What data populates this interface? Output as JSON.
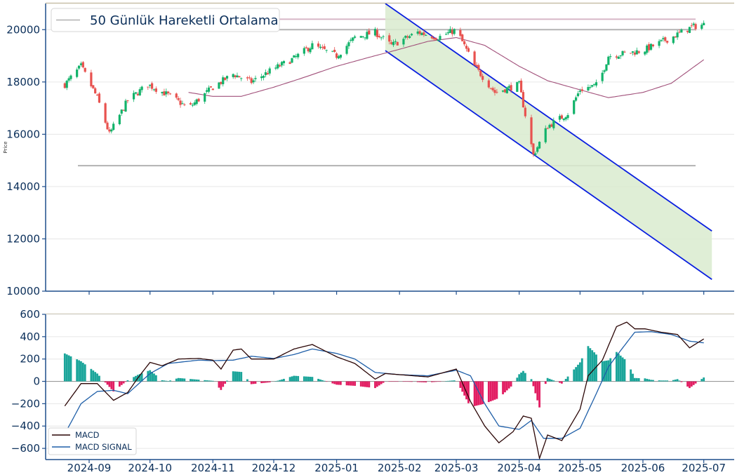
{
  "colors": {
    "axis": "#1f4e8c",
    "tick_text": "#0b2f5a",
    "grid": "#e6e6e6",
    "up_candle": "#12b36a",
    "down_candle": "#e8524f",
    "ma_line": "#a1507a",
    "level_line": "#b3b3b3",
    "top_border": "#c8c0a8",
    "channel_fill": "#d9ebcf",
    "channel_line": "#0a1fe0",
    "macd_line": "#2a0505",
    "signal_line": "#1f5fa8",
    "hist_pos": "#1aa59a",
    "hist_neg": "#e21d62"
  },
  "chart_data": [
    {
      "type": "candlestick",
      "ylabel": "Price",
      "ylim": [
        10000,
        21000
      ],
      "yticks": [
        "10000",
        "12000",
        "14000",
        "16000",
        "18000",
        "20000"
      ],
      "legend": {
        "placement": "top-left",
        "entries": [
          "50 Günlük Hareketli Ortalama"
        ]
      },
      "grid": true,
      "horizontal_levels": [
        20400,
        20000,
        14800
      ],
      "regression_channel": {
        "start_date": "2025-01-25",
        "end_date": "2025-07-05",
        "upper": [
          21000,
          12300
        ],
        "lower": [
          19200,
          10450
        ]
      },
      "ma50_key_points": [
        [
          "2024-10-20",
          17600
        ],
        [
          "2024-11-01",
          17450
        ],
        [
          "2024-11-15",
          17450
        ],
        [
          "2024-12-01",
          17800
        ],
        [
          "2024-12-15",
          18150
        ],
        [
          "2025-01-01",
          18600
        ],
        [
          "2025-01-15",
          18900
        ],
        [
          "2025-02-01",
          19250
        ],
        [
          "2025-02-15",
          19550
        ],
        [
          "2025-03-01",
          19700
        ],
        [
          "2025-03-15",
          19400
        ],
        [
          "2025-04-01",
          18600
        ],
        [
          "2025-04-15",
          18050
        ],
        [
          "2025-05-01",
          17700
        ],
        [
          "2025-05-15",
          17400
        ],
        [
          "2025-06-01",
          17600
        ],
        [
          "2025-06-15",
          17950
        ],
        [
          "2025-07-01",
          18850
        ]
      ],
      "close_key_points": [
        [
          "2024-08-20",
          17900
        ],
        [
          "2024-08-28",
          18600
        ],
        [
          "2024-09-05",
          17400
        ],
        [
          "2024-09-11",
          16000
        ],
        [
          "2024-09-20",
          17300
        ],
        [
          "2024-09-30",
          17900
        ],
        [
          "2024-10-10",
          17500
        ],
        [
          "2024-10-20",
          17000
        ],
        [
          "2024-11-01",
          17800
        ],
        [
          "2024-11-11",
          18300
        ],
        [
          "2024-11-20",
          18000
        ],
        [
          "2024-12-01",
          18500
        ],
        [
          "2024-12-11",
          18900
        ],
        [
          "2024-12-20",
          19400
        ],
        [
          "2025-01-01",
          19000
        ],
        [
          "2025-01-10",
          19700
        ],
        [
          "2025-01-20",
          19900
        ],
        [
          "2025-01-28",
          19400
        ],
        [
          "2025-02-10",
          19900
        ],
        [
          "2025-02-20",
          19700
        ],
        [
          "2025-03-01",
          20000
        ],
        [
          "2025-03-10",
          18600
        ],
        [
          "2025-03-20",
          17600
        ],
        [
          "2025-04-01",
          17900
        ],
        [
          "2025-04-08",
          15200
        ],
        [
          "2025-04-15",
          16300
        ],
        [
          "2025-04-25",
          16800
        ],
        [
          "2025-05-01",
          17700
        ],
        [
          "2025-05-10",
          17900
        ],
        [
          "2025-05-15",
          19000
        ],
        [
          "2025-06-01",
          19200
        ],
        [
          "2025-06-15",
          19700
        ],
        [
          "2025-06-25",
          20100
        ],
        [
          "2025-07-01",
          20200
        ]
      ]
    },
    {
      "type": "line",
      "ylim": [
        -700,
        600
      ],
      "yticks": [
        "600",
        "400",
        "200",
        "0",
        "−200",
        "−400",
        "−600"
      ],
      "x_tick_labels": [
        "2024-09",
        "2024-10",
        "2024-11",
        "2024-12",
        "2025-01",
        "2025-02",
        "2025-03",
        "2025-04",
        "2025-05",
        "2025-06",
        "2025-07"
      ],
      "x_tick_dates": [
        "2024-09-01",
        "2024-10-01",
        "2024-11-01",
        "2024-12-01",
        "2025-01-01",
        "2025-02-01",
        "2025-03-01",
        "2025-04-01",
        "2025-05-01",
        "2025-06-01",
        "2025-07-01"
      ],
      "legend": {
        "placement": "bottom-left"
      },
      "grid": true,
      "series": [
        {
          "name": "MACD",
          "points": [
            [
              "2024-08-20",
              -220
            ],
            [
              "2024-08-28",
              -20
            ],
            [
              "2024-09-05",
              -20
            ],
            [
              "2024-09-13",
              -170
            ],
            [
              "2024-09-20",
              -100
            ],
            [
              "2024-09-25",
              30
            ],
            [
              "2024-10-01",
              170
            ],
            [
              "2024-10-07",
              140
            ],
            [
              "2024-10-15",
              200
            ],
            [
              "2024-10-25",
              205
            ],
            [
              "2024-11-01",
              190
            ],
            [
              "2024-11-05",
              110
            ],
            [
              "2024-11-11",
              280
            ],
            [
              "2024-11-15",
              290
            ],
            [
              "2024-11-20",
              200
            ],
            [
              "2024-12-01",
              200
            ],
            [
              "2024-12-11",
              290
            ],
            [
              "2024-12-20",
              330
            ],
            [
              "2025-01-01",
              220
            ],
            [
              "2025-01-10",
              160
            ],
            [
              "2025-01-20",
              20
            ],
            [
              "2025-01-25",
              70
            ],
            [
              "2025-02-01",
              60
            ],
            [
              "2025-02-15",
              40
            ],
            [
              "2025-03-01",
              110
            ],
            [
              "2025-03-08",
              -180
            ],
            [
              "2025-03-15",
              -400
            ],
            [
              "2025-03-22",
              -550
            ],
            [
              "2025-03-29",
              -450
            ],
            [
              "2025-04-03",
              -310
            ],
            [
              "2025-04-07",
              -330
            ],
            [
              "2025-04-11",
              -690
            ],
            [
              "2025-04-15",
              -480
            ],
            [
              "2025-04-22",
              -530
            ],
            [
              "2025-05-01",
              -250
            ],
            [
              "2025-05-05",
              50
            ],
            [
              "2025-05-12",
              190
            ],
            [
              "2025-05-19",
              490
            ],
            [
              "2025-05-24",
              530
            ],
            [
              "2025-05-28",
              470
            ],
            [
              "2025-06-02",
              470
            ],
            [
              "2025-06-10",
              440
            ],
            [
              "2025-06-18",
              420
            ],
            [
              "2025-06-24",
              300
            ],
            [
              "2025-07-01",
              380
            ]
          ]
        },
        {
          "name": "MACD SIGNAL",
          "points": [
            [
              "2024-08-20",
              -470
            ],
            [
              "2024-08-28",
              -200
            ],
            [
              "2024-09-05",
              -90
            ],
            [
              "2024-09-13",
              -80
            ],
            [
              "2024-09-20",
              -110
            ],
            [
              "2024-10-01",
              70
            ],
            [
              "2024-10-10",
              160
            ],
            [
              "2024-10-25",
              190
            ],
            [
              "2024-11-01",
              185
            ],
            [
              "2024-11-11",
              190
            ],
            [
              "2024-11-20",
              225
            ],
            [
              "2024-12-01",
              205
            ],
            [
              "2024-12-11",
              240
            ],
            [
              "2024-12-20",
              290
            ],
            [
              "2025-01-01",
              250
            ],
            [
              "2025-01-10",
              200
            ],
            [
              "2025-01-20",
              80
            ],
            [
              "2025-02-01",
              60
            ],
            [
              "2025-02-15",
              50
            ],
            [
              "2025-03-01",
              100
            ],
            [
              "2025-03-08",
              50
            ],
            [
              "2025-03-15",
              -200
            ],
            [
              "2025-03-22",
              -400
            ],
            [
              "2025-04-01",
              -430
            ],
            [
              "2025-04-07",
              -350
            ],
            [
              "2025-04-13",
              -510
            ],
            [
              "2025-04-22",
              -510
            ],
            [
              "2025-05-01",
              -420
            ],
            [
              "2025-05-08",
              -150
            ],
            [
              "2025-05-15",
              130
            ],
            [
              "2025-05-22",
              300
            ],
            [
              "2025-05-28",
              440
            ],
            [
              "2025-06-05",
              445
            ],
            [
              "2025-06-15",
              420
            ],
            [
              "2025-06-24",
              360
            ],
            [
              "2025-07-01",
              345
            ]
          ]
        }
      ]
    }
  ]
}
